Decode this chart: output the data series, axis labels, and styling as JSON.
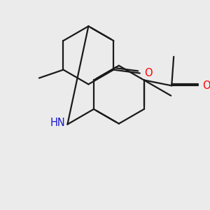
{
  "bg_color": "#ebebeb",
  "bond_color": "#1a1a1a",
  "bond_width": 1.6,
  "dbo": 0.018,
  "atom_colors": {
    "O": "#ff0000",
    "N": "#1a1acc",
    "C": "#1a1a1a"
  },
  "font_size_atom": 10.5,
  "font_size_ch3": 9.5
}
